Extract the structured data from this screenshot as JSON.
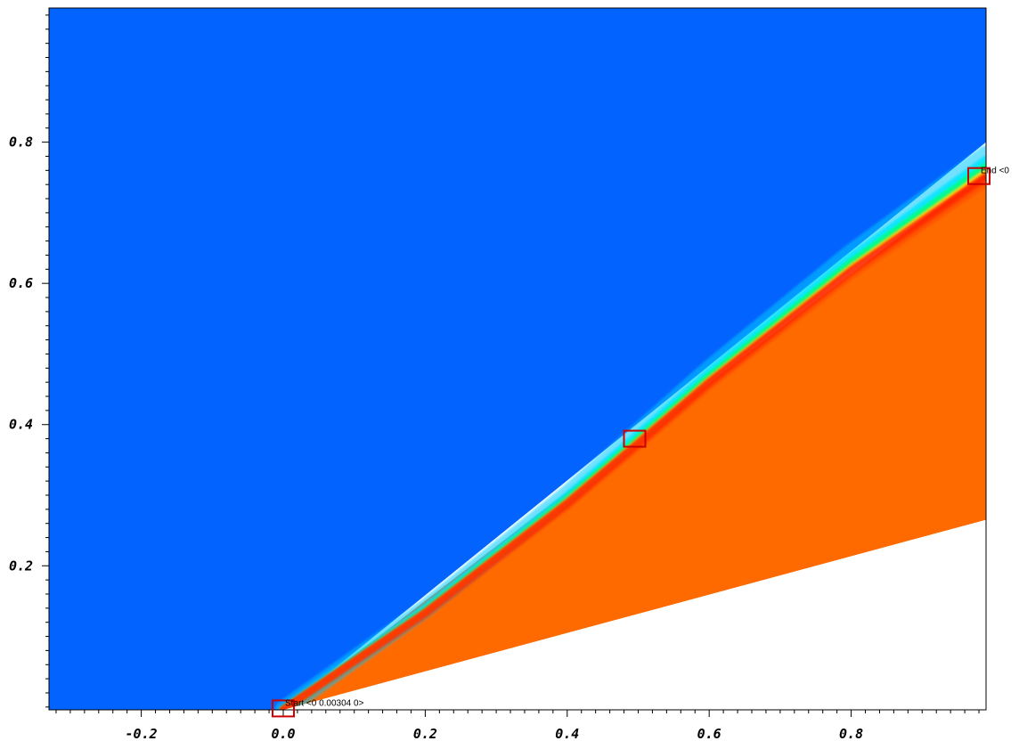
{
  "chart_data": {
    "type": "heatmap",
    "title": "",
    "xlabel": "",
    "ylabel": "",
    "xlim": [
      -0.33,
      0.99
    ],
    "ylim": [
      -0.004,
      0.99
    ],
    "x_ticks": [
      {
        "value": -0.2,
        "label": "-0.2"
      },
      {
        "value": 0.0,
        "label": "0.0"
      },
      {
        "value": 0.2,
        "label": "0.2"
      },
      {
        "value": 0.4,
        "label": "0.4"
      },
      {
        "value": 0.6,
        "label": "0.6"
      },
      {
        "value": 0.8,
        "label": "0.8"
      }
    ],
    "y_ticks": [
      {
        "value": 0.2,
        "label": "0.2"
      },
      {
        "value": 0.4,
        "label": "0.4"
      },
      {
        "value": 0.6,
        "label": "0.6"
      },
      {
        "value": 0.8,
        "label": "0.8"
      }
    ],
    "minor_tick_step": 0.02,
    "colors": {
      "freestream": "#0363ff",
      "post_shock": "#ff6a00",
      "shock_peak": "#ff1a00",
      "shock_mid": "#00ff7f",
      "shock_low": "#00c8ff",
      "body": "#ffffff",
      "probe_box": "#cc0000"
    },
    "fields": [
      {
        "name": "freestream",
        "polygon": [
          [
            -0.33,
            -0.004
          ],
          [
            0.0,
            -0.004
          ],
          [
            0.99,
            0.8
          ],
          [
            0.99,
            0.99
          ],
          [
            -0.33,
            0.99
          ]
        ]
      },
      {
        "name": "post_shock",
        "polygon": [
          [
            0.0,
            -0.004
          ],
          [
            0.99,
            0.76
          ],
          [
            0.99,
            0.265
          ]
        ]
      },
      {
        "name": "body",
        "polygon": [
          [
            0.0,
            -0.004
          ],
          [
            0.99,
            0.265
          ],
          [
            0.99,
            -0.004
          ]
        ]
      }
    ],
    "shock_line": {
      "points": [
        [
          0.0,
          -0.004
        ],
        [
          0.2,
          0.135
        ],
        [
          0.4,
          0.292
        ],
        [
          0.5,
          0.378
        ],
        [
          0.6,
          0.465
        ],
        [
          0.8,
          0.625
        ],
        [
          0.99,
          0.76
        ]
      ]
    },
    "probes": [
      {
        "name": "start",
        "x": 0.0,
        "y": -0.002,
        "label": "Start <0 0.00304 0>"
      },
      {
        "name": "mid",
        "x": 0.495,
        "y": 0.38,
        "label": ""
      },
      {
        "name": "end",
        "x": 0.98,
        "y": 0.752,
        "label": "End <0"
      }
    ]
  }
}
